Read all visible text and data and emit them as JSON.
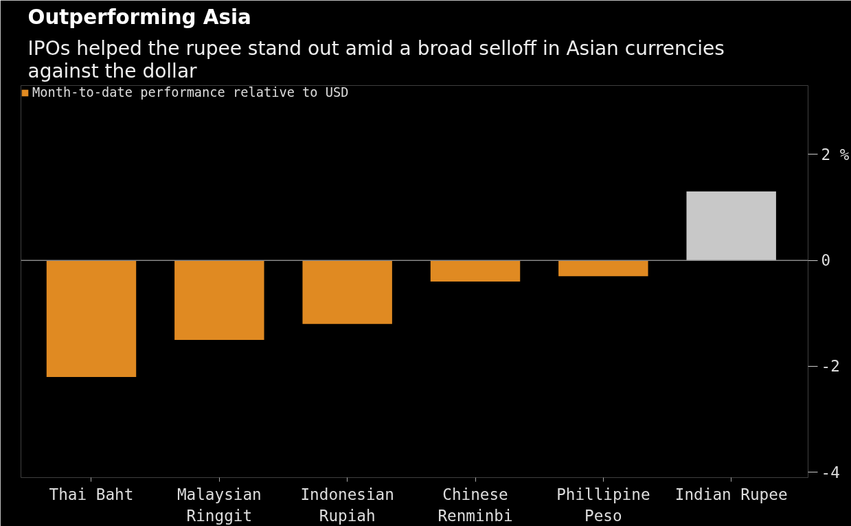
{
  "chart_data": {
    "type": "bar",
    "title": "Outperforming Asia",
    "subtitle": "IPOs helped the rupee stand out amid a broad selloff in Asian currencies\nagainst the dollar",
    "categories": [
      "Thai Baht",
      "Malaysian\nRinggit",
      "Indonesian\nRupiah",
      "Chinese\nRenminbi",
      "Phillipine\nPeso",
      "Indian Rupee"
    ],
    "series": [
      {
        "name": "Month-to-date performance relative to USD",
        "colors": [
          "#e08a22",
          "#e08a22",
          "#e08a22",
          "#e08a22",
          "#e08a22",
          "#c8c8c8"
        ],
        "values": [
          -2.2,
          -1.5,
          -1.2,
          -0.4,
          -0.3,
          1.3
        ]
      }
    ],
    "ylim": [
      -4.1,
      3.3
    ],
    "yticks": [
      {
        "value": 2,
        "label": "2 %"
      },
      0,
      -2,
      -4
    ],
    "ref_lines": [
      {
        "axis": "y",
        "value": 0,
        "color": "#888888"
      }
    ],
    "grid": false,
    "legend": "top left"
  }
}
